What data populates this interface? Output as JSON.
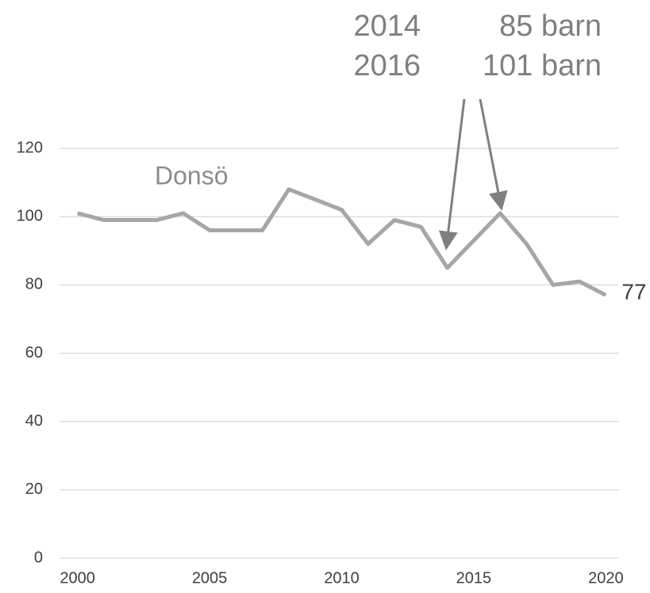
{
  "chart_data": {
    "type": "line",
    "x": [
      2000,
      2001,
      2002,
      2003,
      2004,
      2005,
      2006,
      2007,
      2008,
      2009,
      2010,
      2011,
      2012,
      2013,
      2014,
      2015,
      2016,
      2017,
      2018,
      2019,
      2020
    ],
    "series": [
      {
        "name": "Donsö",
        "color": "#a6a6a6",
        "values": [
          101,
          99,
          99,
          99,
          101,
          96,
          96,
          96,
          108,
          105,
          102,
          92,
          99,
          97,
          85,
          93,
          101,
          92,
          80,
          81,
          77
        ]
      }
    ],
    "xlim": [
      1999.5,
      2020.5
    ],
    "xticks": [
      2000,
      2005,
      2010,
      2015,
      2020
    ],
    "ylim": [
      0,
      130
    ],
    "yticks": [
      0,
      20,
      40,
      60,
      80,
      100,
      120
    ],
    "grid": true,
    "annotations": [
      "2014",
      "2016",
      "85 barn",
      "101 barn"
    ]
  }
}
